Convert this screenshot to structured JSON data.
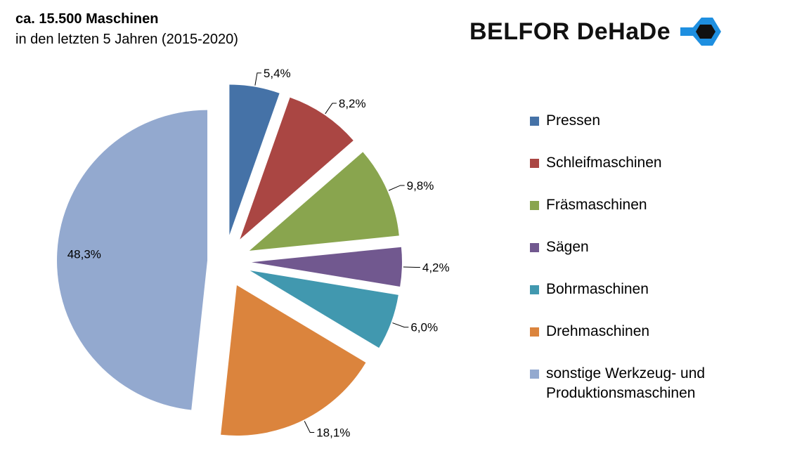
{
  "header": {
    "title": "ca. 15.500 Maschinen",
    "subtitle": "in den letzten 5 Jahren (2015-2020)"
  },
  "logo": {
    "text": "BELFOR DeHaDe",
    "mark_icon": "hexagon-bolt-icon",
    "mark_color": "#1e8fe0"
  },
  "chart_data": {
    "type": "pie",
    "exploded": true,
    "legend_position": "right",
    "categories": [
      "Pressen",
      "Schleifmaschinen",
      "Fräsmaschinen",
      "Sägen",
      "Bohrmaschinen",
      "Drehmaschinen",
      "sonstige Werkzeug- und Produktionsmaschinen"
    ],
    "values": [
      5.4,
      8.2,
      9.8,
      4.2,
      6.0,
      18.1,
      48.3
    ],
    "labels": [
      "5,4%",
      "8,2%",
      "9,8%",
      "4,2%",
      "6,0%",
      "18,1%",
      "48,3%"
    ],
    "colors": [
      "#4572a7",
      "#aa4643",
      "#89a54e",
      "#71588f",
      "#4198af",
      "#db843d",
      "#93a9cf"
    ]
  }
}
